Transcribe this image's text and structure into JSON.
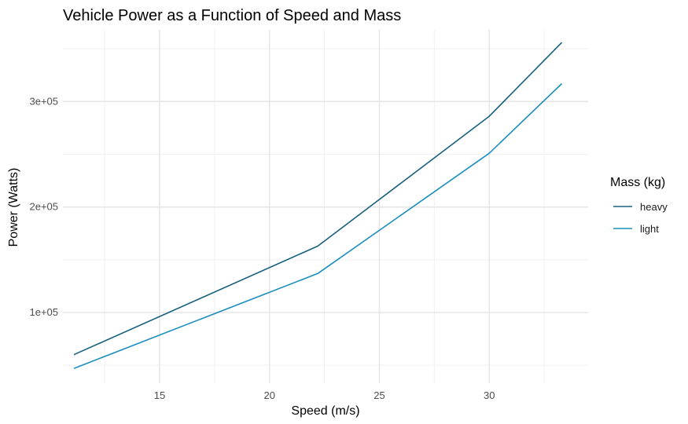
{
  "chart_data": {
    "type": "line",
    "title": "Vehicle Power as a Function of Speed and Mass",
    "xlabel": "Speed (m/s)",
    "ylabel": "Power (Watts)",
    "xlim": [
      10.6,
      34.5
    ],
    "ylim": [
      33000,
      368000
    ],
    "x_ticks": [
      15,
      20,
      25,
      30
    ],
    "x_tick_labels": [
      "15",
      "20",
      "25",
      "30"
    ],
    "x_minor_ticks": [
      12.5,
      17.5,
      22.5,
      27.5,
      32.5
    ],
    "y_ticks": [
      100000,
      200000,
      300000
    ],
    "y_tick_labels": [
      "1e+05",
      "2e+05",
      "3e+05"
    ],
    "y_minor_ticks": [
      50000,
      150000,
      250000,
      350000
    ],
    "grid": true,
    "legend": {
      "title": "Mass (kg)",
      "position": "right"
    },
    "series": [
      {
        "name": "heavy",
        "color": "#16607f",
        "x": [
          11.1,
          22.2,
          30.0,
          33.3
        ],
        "y": [
          60000,
          163000,
          286000,
          356000
        ]
      },
      {
        "name": "light",
        "color": "#1a8dbf",
        "x": [
          11.1,
          22.2,
          30.0,
          33.3
        ],
        "y": [
          47000,
          137000,
          251000,
          317000
        ]
      }
    ]
  }
}
